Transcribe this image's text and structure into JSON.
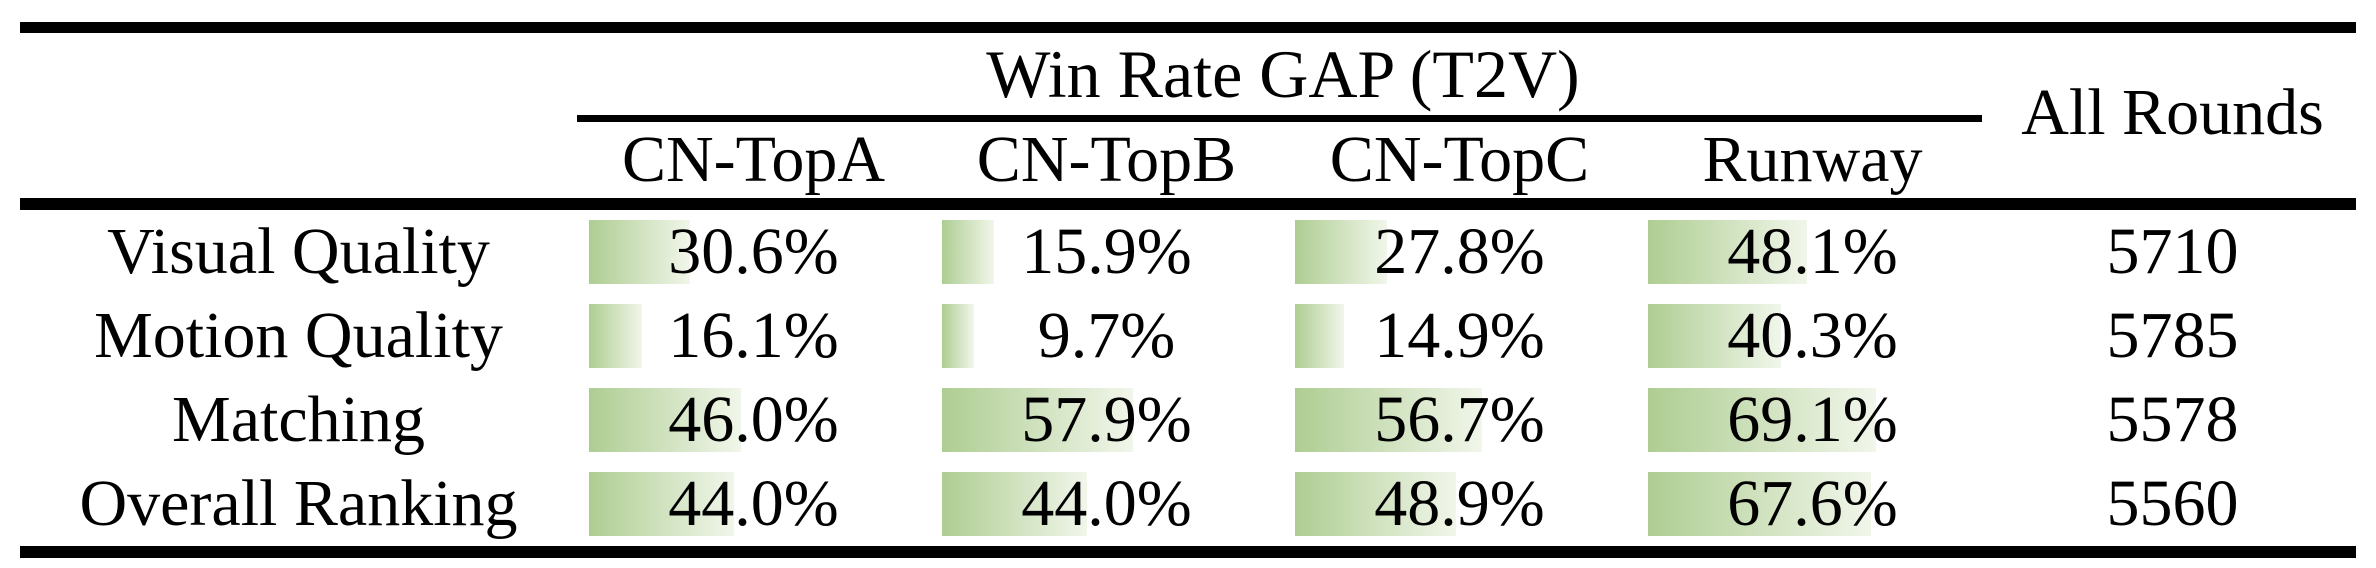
{
  "header": {
    "group_title": "Win Rate GAP (T2V)",
    "columns": [
      "CN-TopA",
      "CN-TopB",
      "CN-TopC",
      "Runway"
    ],
    "all_rounds_label": "All Rounds"
  },
  "rows": [
    {
      "label": "Visual Quality",
      "cells": [
        {
          "value": 30.6,
          "text": "30.6%"
        },
        {
          "value": 15.9,
          "text": "15.9%"
        },
        {
          "value": 27.8,
          "text": "27.8%"
        },
        {
          "value": 48.1,
          "text": "48.1%"
        }
      ],
      "rounds": "5710"
    },
    {
      "label": "Motion Quality",
      "cells": [
        {
          "value": 16.1,
          "text": "16.1%"
        },
        {
          "value": 9.7,
          "text": "9.7%"
        },
        {
          "value": 14.9,
          "text": "14.9%"
        },
        {
          "value": 40.3,
          "text": "40.3%"
        }
      ],
      "rounds": "5785"
    },
    {
      "label": "Matching",
      "cells": [
        {
          "value": 46.0,
          "text": "46.0%"
        },
        {
          "value": 57.9,
          "text": "57.9%"
        },
        {
          "value": 56.7,
          "text": "56.7%"
        },
        {
          "value": 69.1,
          "text": "69.1%"
        }
      ],
      "rounds": "5578"
    },
    {
      "label": "Overall Ranking",
      "cells": [
        {
          "value": 44.0,
          "text": "44.0%"
        },
        {
          "value": 44.0,
          "text": "44.0%"
        },
        {
          "value": 48.9,
          "text": "48.9%"
        },
        {
          "value": 67.6,
          "text": "67.6%"
        }
      ],
      "rounds": "5560"
    }
  ],
  "colors": {
    "bar_gradient_start": "#aecd92",
    "bar_gradient_end": "#f1f6ea",
    "rule_color": "#000000",
    "text_color": "#000000"
  },
  "chart_data": {
    "type": "table",
    "title": "Win Rate GAP (T2V)",
    "columns": [
      "CN-TopA",
      "CN-TopB",
      "CN-TopC",
      "Runway",
      "All Rounds"
    ],
    "row_labels": [
      "Visual Quality",
      "Motion Quality",
      "Matching",
      "Overall Ranking"
    ],
    "win_rate_gap_percent": [
      [
        30.6,
        15.9,
        27.8,
        48.1
      ],
      [
        16.1,
        9.7,
        14.9,
        40.3
      ],
      [
        46.0,
        57.9,
        56.7,
        69.1
      ],
      [
        44.0,
        44.0,
        48.9,
        67.6
      ]
    ],
    "all_rounds": [
      5710,
      5785,
      5578,
      5560
    ],
    "bars": "horizontal green gradient data bars, width proportional to percent, behind cell text"
  }
}
